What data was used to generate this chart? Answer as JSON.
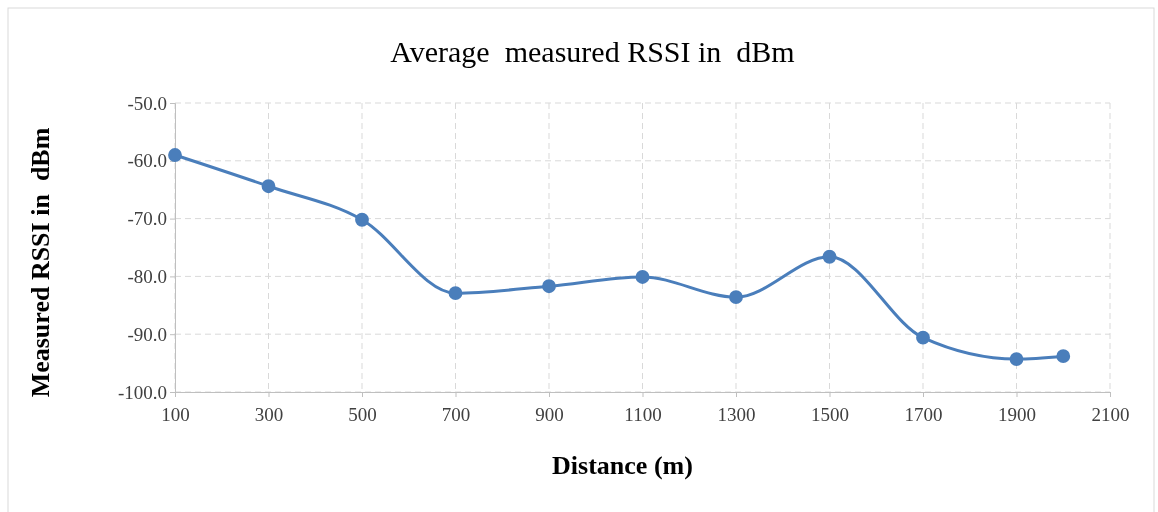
{
  "chart_data": {
    "type": "line",
    "title": "Average  measured RSSI in  dBm",
    "xlabel": "Distance (m)",
    "ylabel": "Measured RSSI in  dBm",
    "x": [
      100,
      300,
      500,
      700,
      900,
      1100,
      1300,
      1500,
      1700,
      1900,
      2000
    ],
    "series": [
      {
        "color": "#4a7ebb",
        "values": [
          -59.0,
          -64.4,
          -70.2,
          -82.9,
          -81.7,
          -80.1,
          -83.6,
          -76.6,
          -90.6,
          -94.3,
          -93.8
        ]
      }
    ],
    "xlim": [
      100,
      2100
    ],
    "xticks": [
      100,
      300,
      500,
      700,
      900,
      1100,
      1300,
      1500,
      1700,
      1900,
      2100
    ],
    "ylim": [
      -100,
      -50
    ],
    "yticks": [
      {
        "value": -100,
        "label": "-100.0"
      },
      {
        "value": -90,
        "label": "-90.0"
      },
      {
        "value": -80,
        "label": "-80.0"
      },
      {
        "value": -70,
        "label": "-70.0"
      },
      {
        "value": -60,
        "label": "-60.0"
      },
      {
        "value": -50,
        "label": "-50.0"
      }
    ],
    "grid": true,
    "marker": "circle",
    "line_style": "solid"
  }
}
